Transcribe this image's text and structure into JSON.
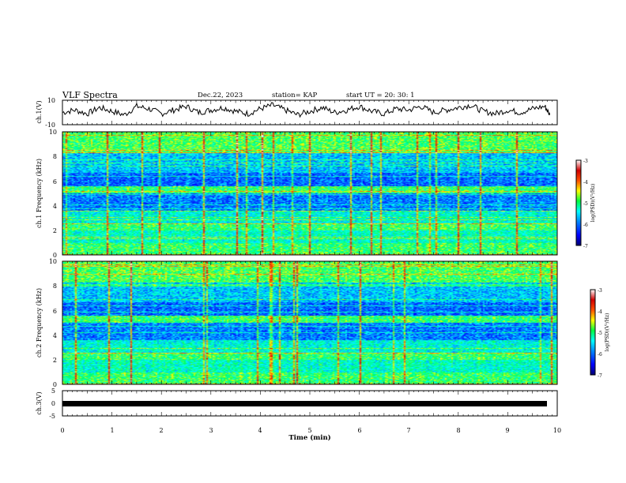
{
  "header": {
    "title": "VLF Spectra",
    "date": "Dec.22, 2023",
    "station": "station= KAP",
    "start": "start  UT =   20: 30: 1"
  },
  "colors": {
    "spectrogram_map": [
      "#000070",
      "#0000ff",
      "#0070ff",
      "#00ffff",
      "#00ff60",
      "#ffff00",
      "#ff5000",
      "#d00000",
      "#ffffff"
    ],
    "trace": "#000000"
  },
  "chart_data": [
    {
      "type": "line",
      "name": "ch1-waveform",
      "ylabel": "ch.1(V)",
      "ylim": [
        -10,
        10
      ],
      "yticks": [
        "10",
        "-10"
      ],
      "xlim": [
        0,
        10
      ],
      "x": [
        0,
        0.25,
        0.5,
        0.75,
        1,
        1.25,
        1.5,
        1.75,
        2,
        2.25,
        2.5,
        2.75,
        3,
        3.25,
        3.5,
        3.75,
        4,
        4.25,
        4.5,
        4.75,
        5,
        5.25,
        5.5,
        5.75,
        6,
        6.25,
        6.5,
        6.75,
        7,
        7.25,
        7.5,
        7.75,
        8,
        8.25,
        8.5,
        8.75,
        9,
        9.25,
        9.5,
        9.75,
        9.85
      ],
      "y": [
        0,
        2,
        -1,
        4,
        1,
        -2,
        5,
        3,
        -1,
        2,
        5,
        0,
        2,
        4,
        1,
        -1,
        3,
        6,
        2,
        -2,
        1,
        4,
        0,
        2,
        5,
        1,
        -1,
        3,
        2,
        5,
        0,
        2,
        4,
        6,
        1,
        -1,
        2,
        0,
        3,
        5,
        -2
      ]
    },
    {
      "type": "heatmap",
      "name": "ch1-spectrogram",
      "ylabel": "ch.1 Frequency (kHz)",
      "xlim": [
        0,
        10
      ],
      "ylim": [
        0,
        10
      ],
      "yticks": [
        "0",
        "2",
        "4",
        "6",
        "8",
        "10"
      ],
      "colorbar": {
        "label": "log(PSD)(V²/Hz)",
        "range": [
          -7,
          -3
        ],
        "ticks": [
          "-3",
          "-4",
          "-5",
          "-6",
          "-7"
        ]
      }
    },
    {
      "type": "heatmap",
      "name": "ch2-spectrogram",
      "ylabel": "ch.2 Frequency (kHz)",
      "xlim": [
        0,
        10
      ],
      "ylim": [
        0,
        10
      ],
      "yticks": [
        "0",
        "2",
        "4",
        "6",
        "8",
        "10"
      ],
      "colorbar": {
        "label": "log(PSD)(V²/Hz)",
        "range": [
          -7,
          -3
        ],
        "ticks": [
          "-3",
          "-4",
          "-5",
          "-6",
          "-7"
        ]
      }
    },
    {
      "type": "line",
      "name": "ch3-waveform",
      "ylabel": "ch.3(V)",
      "ylim": [
        -5,
        5
      ],
      "yticks": [
        "5",
        "0",
        "-5"
      ],
      "xlim": [
        0,
        10
      ],
      "x": [
        0,
        9.85
      ],
      "y": [
        0,
        0
      ]
    }
  ],
  "xaxis": {
    "label": "Time (min)",
    "ticks": [
      "0",
      "1",
      "2",
      "3",
      "4",
      "5",
      "6",
      "7",
      "8",
      "9",
      "10"
    ]
  }
}
